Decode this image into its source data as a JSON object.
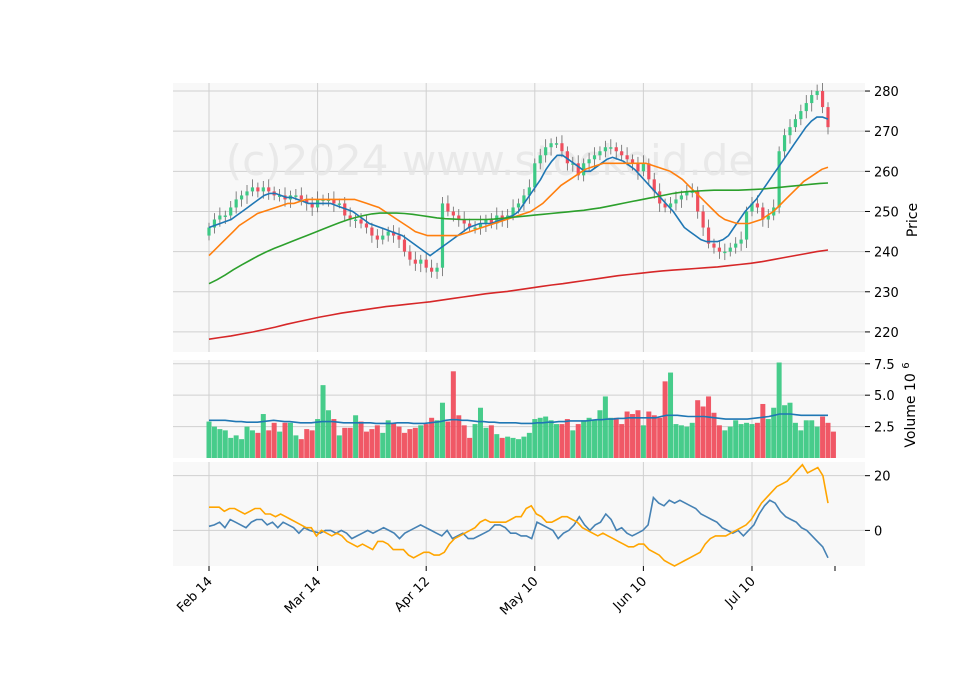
{
  "watermark": "(c)2024 www.stockoid.de",
  "colors": {
    "up": "#3dc985",
    "down": "#ef4f5e",
    "panel_bg": "#f8f8f8",
    "grid": "#d0d0d0",
    "ma_fast": "#1f77b4",
    "ma_mid": "#ff7f0e",
    "ma_slow": "#2ca02c",
    "ma_long": "#d62728",
    "osc_a": "#4682b4",
    "osc_b": "#ffa500"
  },
  "chart_data": [
    {
      "type": "candlestick",
      "panel": "price",
      "ylabel": "Price",
      "ylim": [
        215,
        282
      ],
      "yticks": [
        220,
        230,
        240,
        250,
        260,
        270,
        280
      ],
      "x_tick_labels": [
        "Feb 14",
        "Mar 14",
        "Apr 12",
        "May 10",
        "Jun 10",
        "Jul 10"
      ],
      "x_tick_index": [
        0,
        20,
        40,
        60,
        80,
        100
      ],
      "grid": true,
      "watermark": "(c)2024 www.stockoid.de",
      "close": [
        246,
        248,
        249,
        249,
        251,
        253,
        254,
        255,
        256,
        255,
        256,
        255,
        254,
        254,
        253,
        254,
        254,
        253,
        252,
        251,
        253,
        253,
        253,
        252,
        252,
        249,
        248,
        248,
        247,
        246,
        244,
        243,
        244,
        245,
        244,
        243,
        240,
        238,
        237,
        238,
        236,
        235,
        236,
        252,
        250,
        249,
        248,
        247,
        246,
        246,
        247,
        248,
        247,
        249,
        248,
        249,
        251,
        252,
        254,
        256,
        262,
        264,
        266,
        267,
        267,
        265,
        262,
        262,
        259,
        262,
        263,
        264,
        265,
        266,
        266,
        265,
        264,
        263,
        262,
        260,
        262,
        258,
        255,
        252,
        251,
        252,
        253,
        254,
        255,
        255,
        250,
        246,
        242,
        241,
        240,
        240,
        241,
        242,
        243,
        250,
        252,
        251,
        248,
        249,
        251,
        265,
        269,
        271,
        273,
        275,
        277,
        279,
        280,
        276,
        271
      ]
    },
    {
      "type": "line",
      "panel": "price",
      "series": [
        {
          "key": "ma_fast",
          "values": [
            246,
            246.5,
            247,
            247.5,
            248,
            249,
            250,
            251,
            252,
            253,
            254,
            254.5,
            254.5,
            254,
            253.5,
            253.5,
            253,
            252.5,
            252,
            252,
            252,
            252,
            252,
            251.5,
            251,
            250.5,
            250,
            249,
            248,
            247,
            246.5,
            246,
            245.5,
            245,
            244.5,
            244,
            243,
            242,
            241,
            240,
            239,
            240,
            241,
            242,
            243,
            244,
            245,
            246,
            246.5,
            247,
            247,
            247,
            247.5,
            248,
            248.5,
            249,
            250,
            252,
            254,
            256,
            258,
            260.5,
            262.5,
            264,
            264,
            263,
            262,
            261,
            260,
            260,
            261,
            262,
            263,
            263.5,
            263,
            262.5,
            261.5,
            260.5,
            259,
            257.5,
            256,
            254.5,
            253,
            251.5,
            250,
            248,
            246,
            245,
            244,
            243,
            242.5,
            242.5,
            242.5,
            243,
            244,
            246,
            248,
            250,
            251.5,
            253,
            255,
            257,
            259,
            261,
            263,
            265,
            267,
            269,
            271,
            272.5,
            273.5,
            273.5,
            273
          ]
        },
        {
          "key": "ma_mid",
          "values": [
            239,
            240.5,
            242,
            243.5,
            245,
            246.5,
            247.5,
            248.5,
            249.5,
            250,
            250.5,
            251,
            251.5,
            252,
            252,
            252.5,
            253,
            253,
            253,
            253,
            253,
            253,
            253,
            253,
            253,
            252.5,
            252,
            251.5,
            251,
            250,
            249,
            248,
            247,
            246,
            245,
            244.5,
            244,
            244,
            244,
            244,
            244,
            244,
            244.5,
            245,
            245.5,
            246,
            246.5,
            247,
            247.5,
            248,
            248.5,
            249,
            249.5,
            250,
            251,
            252,
            253.5,
            255,
            256.5,
            257.5,
            258.5,
            259.5,
            260.5,
            261,
            261.5,
            262,
            262,
            262,
            262,
            262,
            262,
            262,
            262,
            261.5,
            261,
            260.5,
            260,
            259,
            258,
            256.5,
            255,
            253.5,
            252,
            250.5,
            249,
            248,
            247.5,
            247,
            247,
            247,
            247.5,
            248,
            249,
            250,
            251.5,
            253,
            254.5,
            256,
            257.5,
            258.5,
            259.5,
            260.5,
            261
          ]
        },
        {
          "key": "ma_slow",
          "values": [
            232,
            233,
            234.2,
            235.5,
            236.7,
            237.8,
            238.9,
            239.9,
            240.8,
            241.6,
            242.4,
            243.2,
            244,
            244.8,
            245.6,
            246.4,
            247.2,
            247.9,
            248.5,
            249,
            249.4,
            249.6,
            249.6,
            249.6,
            249.5,
            249.3,
            249,
            248.7,
            248.4,
            248.2,
            248.1,
            248,
            248,
            248,
            248,
            248.1,
            248.3,
            248.5,
            248.7,
            248.9,
            249.1,
            249.3,
            249.5,
            249.7,
            249.9,
            250.1,
            250.3,
            250.6,
            250.9,
            251.3,
            251.7,
            252.1,
            252.5,
            252.9,
            253.3,
            253.7,
            254.1,
            254.5,
            254.8,
            255,
            255.1,
            255.2,
            255.3,
            255.3,
            255.3,
            255.3,
            255.4,
            255.5,
            255.6,
            255.8,
            256,
            256.2,
            256.4,
            256.6,
            256.8,
            257,
            257.1
          ]
        },
        {
          "key": "ma_long",
          "values": [
            218.2,
            218.6,
            219,
            219.5,
            220,
            220.6,
            221.2,
            221.9,
            222.5,
            223.1,
            223.7,
            224.2,
            224.7,
            225.1,
            225.5,
            225.9,
            226.3,
            226.6,
            226.9,
            227.2,
            227.5,
            227.9,
            228.3,
            228.7,
            229.1,
            229.5,
            229.8,
            230.1,
            230.5,
            230.9,
            231.3,
            231.7,
            232,
            232.4,
            232.8,
            233.2,
            233.6,
            234,
            234.3,
            234.6,
            234.9,
            235.2,
            235.4,
            235.6,
            235.8,
            236,
            236.2,
            236.5,
            236.8,
            237.1,
            237.5,
            238,
            238.5,
            239,
            239.5,
            240,
            240.4
          ]
        }
      ]
    },
    {
      "type": "bar",
      "panel": "volume",
      "ylabel": "Volume  10^6",
      "ylim": [
        0,
        7.8
      ],
      "yticks": [
        2.5,
        5.0,
        7.5
      ],
      "ytick_labels": [
        "2.5",
        "5.0",
        "7.5"
      ],
      "values": [
        2.9,
        2.5,
        2.3,
        2.2,
        1.6,
        1.8,
        1.5,
        2.5,
        2.2,
        2.0,
        3.5,
        2.2,
        2.8,
        2.1,
        2.8,
        2.8,
        1.8,
        1.5,
        2.3,
        2.2,
        3.1,
        5.8,
        3.8,
        3.1,
        1.8,
        2.4,
        2.4,
        3.4,
        2.9,
        2.1,
        2.3,
        2.6,
        2.0,
        3.0,
        2.8,
        2.5,
        2.0,
        2.3,
        2.4,
        2.6,
        2.7,
        3.2,
        3.0,
        4.4,
        2.9,
        6.9,
        3.4,
        2.6,
        1.6,
        2.7,
        4.0,
        2.4,
        2.6,
        1.9,
        1.6,
        1.7,
        1.6,
        1.5,
        1.7,
        2.0,
        3.1,
        3.2,
        3.3,
        3.0,
        2.7,
        2.7,
        3.1,
        2.2,
        2.7,
        3.0,
        3.2,
        3.0,
        3.8,
        4.9,
        3.2,
        3.2,
        2.7,
        3.7,
        3.5,
        3.8,
        2.6,
        3.7,
        3.4,
        3.2,
        6.1,
        6.8,
        2.7,
        2.6,
        2.5,
        2.8,
        4.6,
        4.1,
        4.9,
        3.6,
        2.6,
        2.2,
        2.5,
        3.0,
        2.7,
        2.8,
        2.7,
        2.8,
        4.3,
        3.1,
        4.0,
        7.6,
        4.2,
        4.4,
        2.8,
        2.2,
        3.0,
        3.0,
        2.5,
        3.3,
        2.8,
        2.1
      ]
    },
    {
      "type": "line",
      "panel": "volume",
      "series": [
        {
          "key": "vol_ma",
          "values": [
            3.0,
            3.0,
            3.0,
            3.0,
            2.95,
            2.9,
            2.9,
            2.85,
            2.85,
            2.85,
            2.9,
            2.95,
            3.0,
            2.95,
            2.9,
            2.9,
            2.85,
            2.8,
            2.8,
            2.8,
            2.85,
            2.9,
            2.9,
            2.9,
            2.85,
            2.8,
            2.8,
            2.8,
            2.8,
            2.8,
            2.8,
            2.75,
            2.75,
            2.75,
            2.75,
            2.8,
            2.8,
            2.8,
            2.75,
            2.75,
            2.75,
            2.8,
            2.85,
            2.9,
            3.0,
            3.05,
            3.05,
            3.0,
            3.0,
            2.95,
            2.9,
            2.9,
            2.85,
            2.85,
            2.8,
            2.8,
            2.8,
            2.8,
            2.75,
            2.75,
            2.75,
            2.8,
            2.8,
            2.85,
            2.85,
            2.9,
            2.9,
            2.95,
            2.95,
            2.95,
            2.95,
            3.0,
            3.05,
            3.05,
            3.1,
            3.1,
            3.15,
            3.15,
            3.2,
            3.2,
            3.2,
            3.2,
            3.2,
            3.2,
            3.3,
            3.4,
            3.4,
            3.4,
            3.35,
            3.3,
            3.3,
            3.3,
            3.3,
            3.25,
            3.2,
            3.15,
            3.1,
            3.1,
            3.1,
            3.1,
            3.1,
            3.15,
            3.2,
            3.25,
            3.3,
            3.4,
            3.5,
            3.5,
            3.5,
            3.45,
            3.4,
            3.4,
            3.4,
            3.4,
            3.4,
            3.4
          ]
        }
      ]
    },
    {
      "type": "line",
      "panel": "oscillator",
      "ylim": [
        -13,
        25
      ],
      "yticks": [
        0,
        20
      ],
      "series": [
        {
          "key": "osc_a",
          "values": [
            1.5,
            2,
            3,
            1,
            4,
            3,
            2,
            1,
            3,
            4,
            4,
            2,
            3,
            1,
            3,
            2,
            1,
            -1,
            1,
            0,
            -0.5,
            -1,
            0,
            0,
            -1,
            0,
            -1,
            -3,
            -2,
            -1,
            0,
            -1,
            0,
            1,
            0,
            -1,
            -3,
            -1,
            0,
            1,
            2,
            1,
            0,
            -1,
            -2,
            0,
            -3,
            -2,
            -1,
            -3,
            -3,
            -2,
            -1,
            0,
            2,
            2,
            1,
            -1,
            -1,
            -2,
            -2,
            -3,
            3,
            2,
            1,
            0,
            -3,
            -1,
            0,
            2,
            5,
            2,
            0,
            2,
            3,
            6,
            4,
            0,
            1,
            -1,
            -2,
            -1,
            0,
            2,
            12,
            10,
            9,
            11,
            10,
            11,
            10,
            9,
            8,
            6,
            5,
            4,
            3,
            1,
            0,
            -1,
            0,
            -2,
            0,
            2,
            6,
            9,
            11,
            10,
            7,
            5,
            4,
            3,
            1,
            0,
            -2,
            -4,
            -6,
            -10
          ]
        },
        {
          "key": "osc_b",
          "values": [
            8.5,
            8.5,
            8.5,
            7,
            8,
            8,
            7,
            6,
            7,
            8,
            8,
            6,
            6,
            5,
            6,
            5,
            4,
            3,
            2,
            1,
            1,
            -2,
            0,
            -1,
            -2,
            -1,
            -2,
            -4,
            -5,
            -6,
            -5,
            -6,
            -7,
            -4,
            -4,
            -5,
            -7,
            -7,
            -7,
            -9,
            -10,
            -9,
            -8,
            -8,
            -9,
            -9,
            -8,
            -5,
            -3,
            -2,
            -1,
            0,
            1,
            3,
            4,
            3,
            3,
            3,
            3,
            4,
            5,
            5,
            8,
            9,
            6,
            5,
            3,
            3,
            4,
            5,
            5,
            4,
            3,
            1,
            0,
            -1,
            -2,
            -1,
            -2,
            -3,
            -4,
            -5,
            -6,
            -6,
            -5,
            -5,
            -7,
            -8,
            -9,
            -11,
            -12,
            -13,
            -12,
            -11,
            -10,
            -9,
            -8,
            -5,
            -3,
            -2,
            -2,
            -2,
            -1,
            0,
            1,
            2,
            4,
            7,
            10,
            12,
            14,
            16,
            17,
            18,
            20,
            22,
            24,
            21,
            22,
            23,
            20,
            10
          ]
        }
      ]
    }
  ]
}
